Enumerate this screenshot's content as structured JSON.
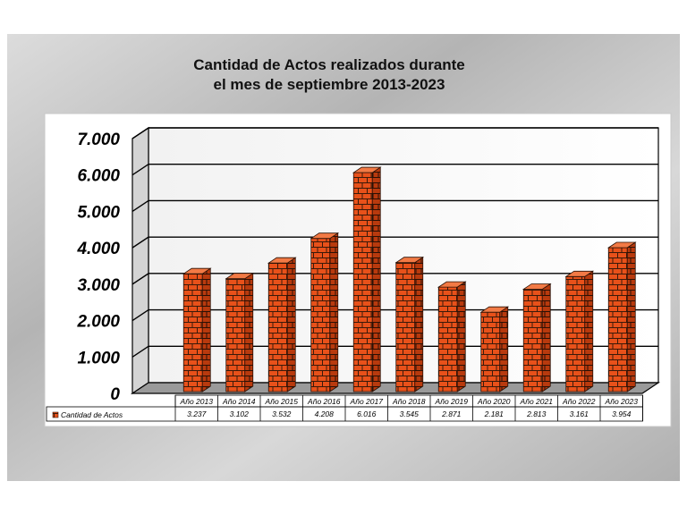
{
  "chart_data": {
    "type": "bar",
    "title_line1": "Cantidad de Actos realizados durante",
    "title_line2": "el mes de septiembre 2013-2023",
    "categories": [
      "Año 2013",
      "Año 2014",
      "Año 2015",
      "Año 2016",
      "Año 2017",
      "Año 2018",
      "Año 2019",
      "Año 2020",
      "Año 2021",
      "Año 2022",
      "Año 2023"
    ],
    "series": [
      {
        "name": "Cantidad de Actos",
        "values": [
          3237,
          3102,
          3532,
          4208,
          6016,
          3545,
          2871,
          2181,
          2813,
          3161,
          3954
        ]
      }
    ],
    "value_labels": [
      "3.237",
      "3.102",
      "3.532",
      "4.208",
      "6.016",
      "3.545",
      "2.871",
      "2.181",
      "2.813",
      "3.161",
      "3.954"
    ],
    "y_ticks": [
      0,
      1000,
      2000,
      3000,
      4000,
      5000,
      6000,
      7000
    ],
    "y_tick_labels": [
      "0",
      "1.000",
      "2.000",
      "3.000",
      "4.000",
      "5.000",
      "6.000",
      "7.000"
    ],
    "ylim": [
      0,
      7000
    ],
    "grid": true,
    "legend": "data-table",
    "bar_color": "#e8511a",
    "mortar_color": "#3a1a0a"
  }
}
